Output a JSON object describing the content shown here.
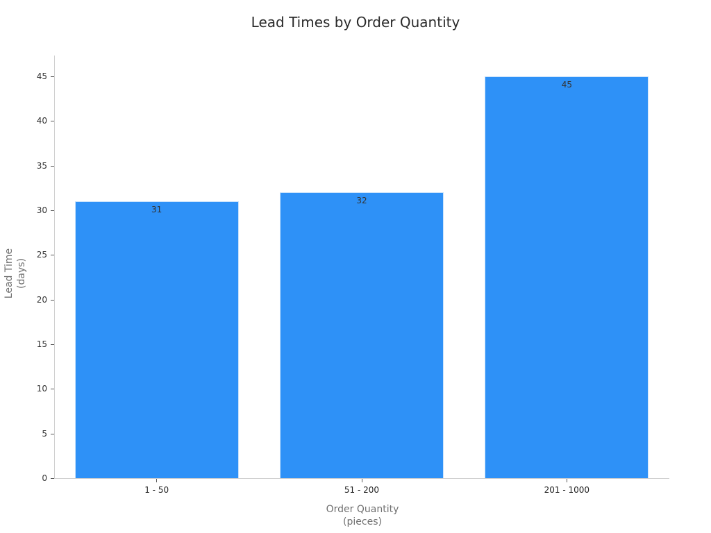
{
  "chart_data": {
    "type": "bar",
    "title": "Lead Times by Order Quantity",
    "categories": [
      "1 - 50",
      "51 - 200",
      "201 - 1000"
    ],
    "values": [
      31,
      32,
      45
    ],
    "data_labels": [
      "31",
      "32",
      "45"
    ],
    "xlabel": "Order Quantity",
    "xlabel_unit": "(pieces)",
    "ylabel": "Lead Time",
    "ylabel_unit": "(days)",
    "ylim": [
      0,
      47
    ],
    "yticks": [
      "0",
      "5",
      "10",
      "15",
      "20",
      "25",
      "30",
      "35",
      "40",
      "45"
    ],
    "grid": false,
    "legend": null,
    "bar_color": "#2e91f7"
  }
}
